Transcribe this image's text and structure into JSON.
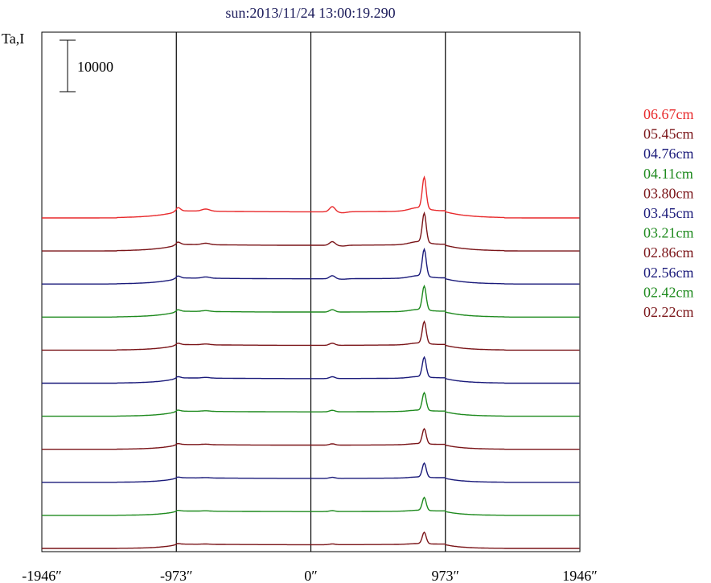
{
  "chart_data": {
    "type": "line",
    "title": "sun:2013/11/24 13:00:19.290",
    "ylabel": "Ta,I",
    "scale_bar_label": "10000",
    "x_ticks": [
      {
        "value": -1946,
        "label": "-1946″"
      },
      {
        "value": -973,
        "label": "-973″"
      },
      {
        "value": 0,
        "label": "0″"
      },
      {
        "value": 973,
        "label": "973″"
      },
      {
        "value": 1946,
        "label": "1946″"
      }
    ],
    "xlim": [
      -1946,
      1946
    ],
    "vlines": [
      -973,
      0,
      973
    ],
    "grid": false,
    "legend_position": "right",
    "series": [
      {
        "name": "06.67cm",
        "color": "#e8292b",
        "offset": 10,
        "peak": 6000,
        "limb": 1400,
        "bump": 1000,
        "hump": 700,
        "dip": -200,
        "wide": 0.6
      },
      {
        "name": "05.45cm",
        "color": "#7a1418",
        "offset": 9,
        "peak": 5600,
        "limb": 1300,
        "bump": 700,
        "hump": 600,
        "dip": -150,
        "wide": 0.55
      },
      {
        "name": "04.76cm",
        "color": "#1a1a7a",
        "offset": 8,
        "peak": 5200,
        "limb": 1200,
        "bump": 600,
        "hump": 500,
        "dip": -100,
        "wide": 0.5
      },
      {
        "name": "04.11cm",
        "color": "#1e8a1e",
        "offset": 7,
        "peak": 4600,
        "limb": 1150,
        "bump": 450,
        "hump": 400,
        "dip": 0,
        "wide": 0.45
      },
      {
        "name": "03.80cm",
        "color": "#7a1418",
        "offset": 6,
        "peak": 4200,
        "limb": 1100,
        "bump": 400,
        "hump": 350,
        "dip": 0,
        "wide": 0.4
      },
      {
        "name": "03.45cm",
        "color": "#1a1a7a",
        "offset": 5,
        "peak": 3800,
        "limb": 1050,
        "bump": 350,
        "hump": 300,
        "dip": 0,
        "wide": 0.38
      },
      {
        "name": "03.21cm",
        "color": "#1e8a1e",
        "offset": 4,
        "peak": 3400,
        "limb": 1000,
        "bump": 300,
        "hump": 250,
        "dip": 0,
        "wide": 0.35
      },
      {
        "name": "02.86cm",
        "color": "#7a1418",
        "offset": 3,
        "peak": 2900,
        "limb": 950,
        "bump": 250,
        "hump": 220,
        "dip": 0,
        "wide": 0.32
      },
      {
        "name": "02.56cm",
        "color": "#1a1a7a",
        "offset": 2,
        "peak": 2700,
        "limb": 900,
        "bump": 200,
        "hump": 200,
        "dip": 0,
        "wide": 0.3
      },
      {
        "name": "02.42cm",
        "color": "#1e8a1e",
        "offset": 1,
        "peak": 2500,
        "limb": 870,
        "bump": 180,
        "hump": 180,
        "dip": 0,
        "wide": 0.28
      },
      {
        "name": "02.22cm",
        "color": "#7a1418",
        "offset": 0,
        "peak": 2200,
        "limb": 850,
        "bump": 150,
        "hump": 150,
        "dip": 0,
        "wide": 0.25
      }
    ]
  }
}
